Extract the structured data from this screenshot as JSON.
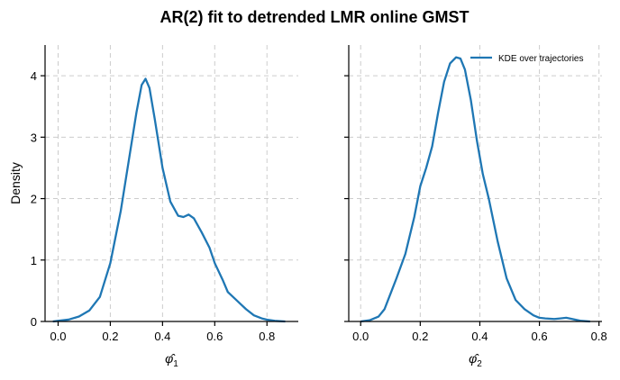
{
  "title": "AR(2) fit to detrended LMR online GMST",
  "colors": {
    "curve": "#1f77b4",
    "grid": "#cccccc"
  },
  "chart_data": [
    {
      "type": "line",
      "xlabel": "φ̂",
      "xlabel_sub": "1",
      "ylabel": "Density",
      "xlim": [
        -0.05,
        0.92
      ],
      "ylim": [
        0,
        4.5
      ],
      "xticks": [
        0.0,
        0.2,
        0.4,
        0.6,
        0.8
      ],
      "xtick_labels": [
        "0.0",
        "0.2",
        "0.4",
        "0.6",
        "0.8"
      ],
      "yticks": [
        0,
        1,
        2,
        3,
        4
      ],
      "ytick_labels": [
        "0",
        "1",
        "2",
        "3",
        "4"
      ],
      "grid": true,
      "series": [
        {
          "x": [
            -0.02,
            0.0,
            0.04,
            0.08,
            0.12,
            0.16,
            0.2,
            0.24,
            0.27,
            0.3,
            0.32,
            0.335,
            0.35,
            0.37,
            0.4,
            0.43,
            0.46,
            0.48,
            0.5,
            0.52,
            0.55,
            0.58,
            0.6,
            0.63,
            0.65,
            0.68,
            0.7,
            0.72,
            0.75,
            0.78,
            0.8,
            0.83,
            0.87
          ],
          "y": [
            0.0,
            0.01,
            0.03,
            0.08,
            0.18,
            0.4,
            0.95,
            1.8,
            2.6,
            3.4,
            3.85,
            3.95,
            3.8,
            3.3,
            2.5,
            1.95,
            1.72,
            1.7,
            1.74,
            1.68,
            1.45,
            1.2,
            0.95,
            0.68,
            0.48,
            0.36,
            0.28,
            0.2,
            0.1,
            0.05,
            0.03,
            0.01,
            0.0
          ]
        }
      ]
    },
    {
      "type": "line",
      "xlabel": "φ̂",
      "xlabel_sub": "2",
      "ylabel": "",
      "xlim": [
        -0.04,
        0.81
      ],
      "ylim": [
        0,
        4.5
      ],
      "xticks": [
        0.0,
        0.2,
        0.4,
        0.6,
        0.8
      ],
      "xtick_labels": [
        "0.0",
        "0.2",
        "0.4",
        "0.6",
        "0.8"
      ],
      "yticks": [
        0,
        1,
        2,
        3,
        4
      ],
      "grid": true,
      "legend": {
        "position": "top-right",
        "label": "KDE over trajectories"
      },
      "series": [
        {
          "name": "KDE over trajectories",
          "x": [
            0.0,
            0.03,
            0.06,
            0.08,
            0.1,
            0.12,
            0.15,
            0.18,
            0.2,
            0.22,
            0.24,
            0.26,
            0.28,
            0.3,
            0.32,
            0.335,
            0.35,
            0.37,
            0.39,
            0.41,
            0.43,
            0.46,
            0.49,
            0.52,
            0.55,
            0.58,
            0.6,
            0.62,
            0.65,
            0.67,
            0.69,
            0.71,
            0.74,
            0.77
          ],
          "y": [
            0.0,
            0.02,
            0.08,
            0.2,
            0.45,
            0.7,
            1.1,
            1.7,
            2.2,
            2.5,
            2.85,
            3.4,
            3.9,
            4.2,
            4.3,
            4.28,
            4.1,
            3.6,
            2.95,
            2.4,
            2.0,
            1.3,
            0.7,
            0.35,
            0.2,
            0.1,
            0.06,
            0.05,
            0.04,
            0.05,
            0.06,
            0.04,
            0.01,
            0.0
          ]
        }
      ]
    }
  ]
}
